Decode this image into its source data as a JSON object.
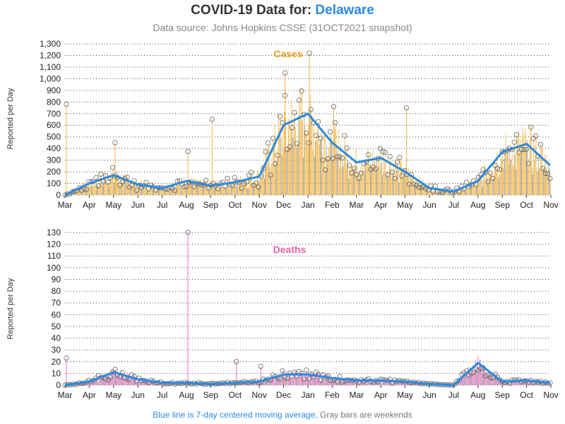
{
  "header": {
    "title_prefix": "COVID-19 Data for: ",
    "title_state": "Delaware",
    "subtitle": "Data source: Johns Hopkins CSSE (31OCT2021 snapshot)"
  },
  "footer": {
    "blue_text": "Blue line is 7-day centered moving average,",
    "gray_text": " Gray bars are weekends"
  },
  "colors": {
    "cases_bar": "#f5b540",
    "cases_title": "#f0a020",
    "deaths_bar": "#e070b8",
    "deaths_title": "#e860b0",
    "weekend_bar": "#9a9a9a",
    "moving_avg": "#2a8ae2",
    "marker": "#666666",
    "grid": "#444444"
  },
  "chart_data": [
    {
      "type": "bar",
      "title": "Cases",
      "ylabel": "Reported per Day",
      "ylim": [
        0,
        1300
      ],
      "yticks": [
        "0",
        "100",
        "200",
        "300",
        "400",
        "500",
        "600",
        "700",
        "800",
        "900",
        "1,000",
        "1,100",
        "1,200",
        "1,300"
      ],
      "xticks": [
        "Mar",
        "Apr",
        "May",
        "Jun",
        "Jul",
        "Aug",
        "Sep",
        "Oct",
        "Nov",
        "Dec",
        "Jan",
        "Feb",
        "Mar",
        "Apr",
        "May",
        "Jun",
        "Jul",
        "Aug",
        "Sep",
        "Oct",
        "Nov"
      ],
      "grid": "horizontal dotted",
      "moving_average_by_month": [
        0,
        100,
        170,
        90,
        60,
        120,
        80,
        110,
        160,
        600,
        700,
        450,
        280,
        320,
        200,
        60,
        30,
        120,
        370,
        440,
        250
      ],
      "spikes": [
        {
          "x": "May",
          "value": 450
        },
        {
          "x": "Aug",
          "value": 375
        },
        {
          "x": "Dec",
          "value": 1050
        },
        {
          "x": "Jan",
          "value": 1220
        },
        {
          "x": "Feb",
          "value": 760
        },
        {
          "x": "Mar",
          "value": 780
        },
        {
          "x": "May",
          "value": 750
        },
        {
          "x": "Sep",
          "value": 650
        }
      ]
    },
    {
      "type": "bar",
      "title": "Deaths",
      "ylabel": "Reported per Day",
      "ylim": [
        0,
        130
      ],
      "yticks": [
        "0",
        "10",
        "20",
        "30",
        "40",
        "50",
        "60",
        "70",
        "80",
        "90",
        "100",
        "110",
        "120",
        "130"
      ],
      "xticks": [
        "Mar",
        "Apr",
        "May",
        "Jun",
        "Jul",
        "Aug",
        "Sep",
        "Oct",
        "Nov",
        "Dec",
        "Jan",
        "Feb",
        "Mar",
        "Apr",
        "May",
        "Jun",
        "Jul",
        "Aug",
        "Sep",
        "Oct",
        "Nov"
      ],
      "grid": "horizontal dotted",
      "moving_average_by_month": [
        0,
        3,
        11,
        5,
        2,
        2,
        1,
        2,
        3,
        9,
        9,
        6,
        4,
        4,
        3,
        1,
        0,
        19,
        3,
        4,
        2
      ],
      "spikes": [
        {
          "x": "Mar",
          "value": 23
        },
        {
          "x": "Aug",
          "value": 130
        },
        {
          "x": "Oct",
          "value": 20
        },
        {
          "x": "Nov",
          "value": 16
        }
      ]
    }
  ]
}
